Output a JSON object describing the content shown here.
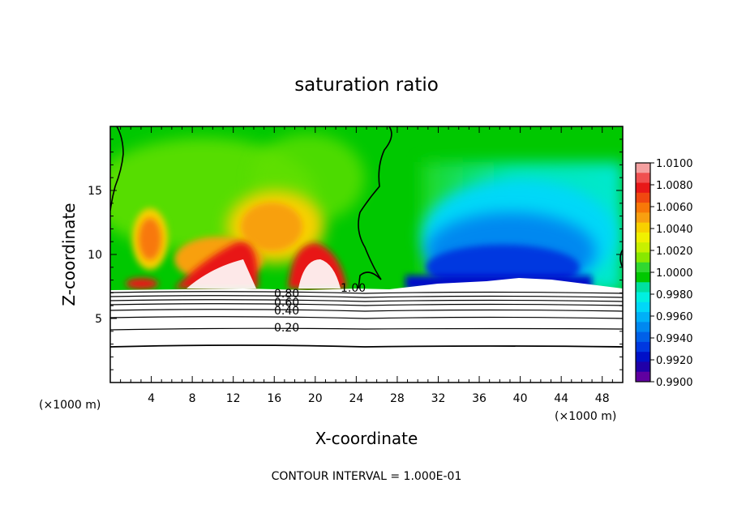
{
  "chart_data": {
    "type": "heatmap",
    "title": "saturation ratio",
    "xlabel": "X-coordinate",
    "ylabel": "Z-coordinate",
    "x_unit": "(×1000 m)",
    "y_unit": "(×1000 m)",
    "xlim": [
      0,
      50
    ],
    "ylim": [
      0,
      20
    ],
    "x_ticks": [
      4,
      8,
      12,
      16,
      20,
      24,
      28,
      32,
      36,
      40,
      44,
      48
    ],
    "y_ticks": [
      5,
      10,
      15
    ],
    "footer": "CONTOUR INTERVAL = 1.000E-01",
    "colorbar": {
      "labels": [
        "1.0100",
        "1.0080",
        "1.0060",
        "1.0040",
        "1.0020",
        "1.0000",
        "0.9980",
        "0.9960",
        "0.9940",
        "0.9920",
        "0.9900"
      ],
      "colors": [
        "#f4a0a0",
        "#f05050",
        "#e81818",
        "#f04810",
        "#f87808",
        "#f8a010",
        "#f8d000",
        "#f0f000",
        "#c8f000",
        "#88e800",
        "#30d830",
        "#00c800",
        "#00e0a0",
        "#00f0e0",
        "#00d8f8",
        "#00b0f8",
        "#0088f0",
        "#0060e8",
        "#0038e0",
        "#0010c8",
        "#2000a8",
        "#6000a0"
      ]
    },
    "contour_labels": [
      "1.00",
      "0.80",
      "0.60",
      "0.40",
      "0.20"
    ],
    "contour_levels": [
      0.2,
      0.3,
      0.4,
      0.5,
      0.6,
      0.7,
      0.8,
      0.9,
      1.0
    ],
    "surface_height_km": 7.2
  }
}
